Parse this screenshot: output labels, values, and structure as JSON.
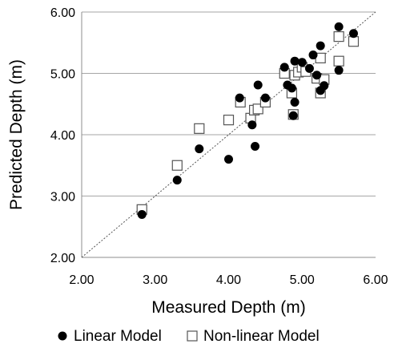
{
  "chart_data": {
    "type": "scatter",
    "xlabel": "Measured Depth (m)",
    "ylabel": "Predicted Depth (m)",
    "xlim": [
      2.0,
      6.0
    ],
    "ylim": [
      2.0,
      6.0
    ],
    "x_ticks": [
      "2.00",
      "3.00",
      "4.00",
      "5.00",
      "6.00"
    ],
    "y_ticks": [
      "2.00",
      "3.00",
      "4.00",
      "5.00",
      "6.00"
    ],
    "x_tick_values": [
      2,
      3,
      4,
      5,
      6
    ],
    "y_tick_values": [
      2,
      3,
      4,
      5,
      6
    ],
    "grid": "horizontal",
    "reference_line": {
      "style": "dotted",
      "x": [
        2,
        6
      ],
      "y": [
        2,
        6
      ]
    },
    "legend_position": "bottom",
    "series": [
      {
        "name": "Linear Model",
        "marker": "filled-circle",
        "color": "#000000",
        "points": [
          [
            2.82,
            2.7
          ],
          [
            3.3,
            3.26
          ],
          [
            3.6,
            3.77
          ],
          [
            4.0,
            3.6
          ],
          [
            4.15,
            4.6
          ],
          [
            4.32,
            4.16
          ],
          [
            4.36,
            3.81
          ],
          [
            4.4,
            4.81
          ],
          [
            4.5,
            4.6
          ],
          [
            4.76,
            5.1
          ],
          [
            4.8,
            4.81
          ],
          [
            4.86,
            4.76
          ],
          [
            4.88,
            4.31
          ],
          [
            4.9,
            5.2
          ],
          [
            4.9,
            4.53
          ],
          [
            5.0,
            5.18
          ],
          [
            5.1,
            5.08
          ],
          [
            5.15,
            5.3
          ],
          [
            5.2,
            4.97
          ],
          [
            5.25,
            5.45
          ],
          [
            5.25,
            4.72
          ],
          [
            5.3,
            4.8
          ],
          [
            5.5,
            5.76
          ],
          [
            5.5,
            5.05
          ],
          [
            5.7,
            5.65
          ]
        ]
      },
      {
        "name": "Non-linear Model",
        "marker": "open-square",
        "color": "#000000",
        "points": [
          [
            2.82,
            2.78
          ],
          [
            3.3,
            3.5
          ],
          [
            3.6,
            4.1
          ],
          [
            4.0,
            4.24
          ],
          [
            4.16,
            4.53
          ],
          [
            4.3,
            4.27
          ],
          [
            4.35,
            4.4
          ],
          [
            4.4,
            4.42
          ],
          [
            4.5,
            4.53
          ],
          [
            4.76,
            5.0
          ],
          [
            4.86,
            4.68
          ],
          [
            4.88,
            4.33
          ],
          [
            4.9,
            4.97
          ],
          [
            4.95,
            5.02
          ],
          [
            5.0,
            5.1
          ],
          [
            5.05,
            5.03
          ],
          [
            5.2,
            4.92
          ],
          [
            5.25,
            5.25
          ],
          [
            5.25,
            4.68
          ],
          [
            5.3,
            4.9
          ],
          [
            5.5,
            5.6
          ],
          [
            5.5,
            5.2
          ],
          [
            5.7,
            5.52
          ]
        ]
      }
    ]
  }
}
